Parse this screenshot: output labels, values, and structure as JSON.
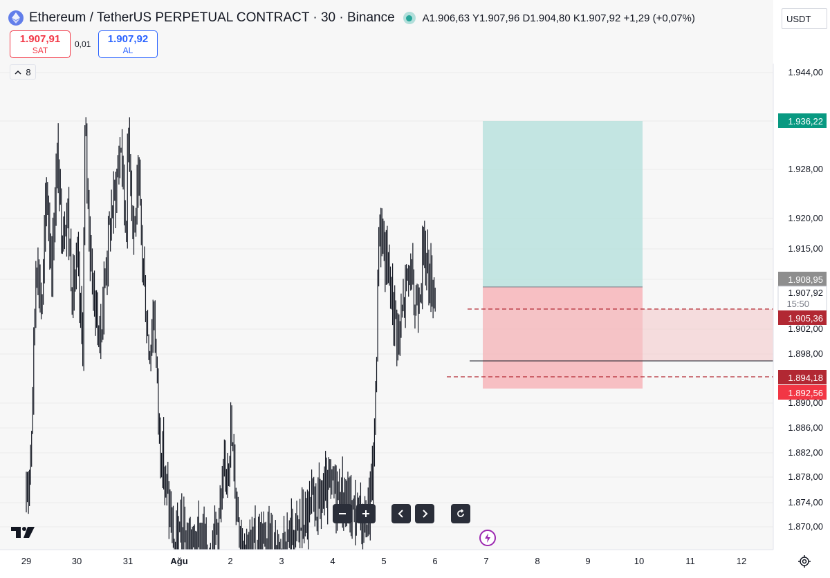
{
  "header": {
    "title": "Ethereum / TetherUS PERPETUAL CONTRACT · 30 · Binance",
    "ohlc": "A1.906,63  Y1.907,96  D1.904,80  K1.907,92  +1,29 (+0,07%)",
    "logo_icon": "ethereum-icon",
    "live_icon": "market-open-icon"
  },
  "currency": "USDT",
  "trade": {
    "sell_price": "1.907,91",
    "sell_label": "SAT",
    "spread": "0,01",
    "buy_price": "1.907,92",
    "buy_label": "AL"
  },
  "indicators_toggle": {
    "icon": "chevron-up-icon",
    "count": "8"
  },
  "colors": {
    "sell": "#f23645",
    "buy": "#2962ff",
    "profit_zone": "#b2dfdb",
    "loss_zone": "#f7a7ac",
    "target_label": "#089981",
    "stop_label": "#b22833",
    "entry_label": "#8e8e8e"
  },
  "navigation": {
    "zoom_out_icon": "minus-icon",
    "zoom_in_icon": "plus-icon",
    "scroll_left_icon": "chevron-left-icon",
    "scroll_right_icon": "chevron-right-icon",
    "reset_icon": "reset-icon",
    "bolt_icon": "lightning-icon",
    "settings_icon": "gear-icon"
  },
  "chart_data": {
    "type": "ohlc",
    "symbol": "ETHUSDT.P",
    "interval": "30",
    "y_axis_ticks": [
      "1.944,00",
      "1.928,00",
      "1.920,00",
      "1.915,00",
      "1.902,00",
      "1.898,00",
      "1.890,00",
      "1.886,00",
      "1.882,00",
      "1.878,00",
      "1.874,00",
      "1.870,00"
    ],
    "x_axis_ticks": [
      "29",
      "30",
      "31",
      "Ağu",
      "2",
      "3",
      "4",
      "5",
      "6",
      "7",
      "8",
      "9",
      "10",
      "11",
      "12"
    ],
    "price_labels": {
      "target": "1.936,22",
      "entry": "1.908,95",
      "current": "1.907,92",
      "countdown": "15:50",
      "red_line_1": "1.905,36",
      "stop_1": "1.894,18",
      "stop_2": "1.892,56"
    },
    "levels": {
      "target": 1936.22,
      "entry": 1908.95,
      "current": 1907.92,
      "horizontal_line": 1905.36,
      "black_line": 1897.1,
      "stop": 1894.18,
      "loss_bottom": 1892.56
    },
    "position_tool": {
      "type": "long",
      "entry": 1908.95,
      "take_profit": 1936.22,
      "stop_loss": 1892.56
    },
    "price_path": [
      [
        29,
        1872
      ],
      [
        29.1,
        1885
      ],
      [
        29.2,
        1915
      ],
      [
        29.3,
        1905
      ],
      [
        29.4,
        1925
      ],
      [
        29.5,
        1912
      ],
      [
        29.6,
        1930
      ],
      [
        29.7,
        1918
      ],
      [
        29.8,
        1922
      ],
      [
        29.9,
        1908
      ],
      [
        30.0,
        1912
      ],
      [
        30.1,
        1898
      ],
      [
        30.15,
        1935
      ],
      [
        30.25,
        1915
      ],
      [
        30.35,
        1905
      ],
      [
        30.45,
        1900
      ],
      [
        30.55,
        1912
      ],
      [
        30.65,
        1920
      ],
      [
        30.75,
        1925
      ],
      [
        30.85,
        1933
      ],
      [
        30.95,
        1918
      ],
      [
        31.0,
        1935
      ],
      [
        31.1,
        1918
      ],
      [
        31.2,
        1925
      ],
      [
        31.3,
        1910
      ],
      [
        31.4,
        1898
      ],
      [
        31.5,
        1905
      ],
      [
        31.6,
        1885
      ],
      [
        31.7,
        1878
      ],
      [
        31.8,
        1872
      ],
      [
        31.9,
        1866
      ],
      [
        32.0,
        1868
      ],
      [
        32.2,
        1866
      ],
      [
        32.4,
        1867
      ],
      [
        32.6,
        1866
      ],
      [
        32.8,
        1872
      ],
      [
        33.0,
        1885
      ],
      [
        33.1,
        1875
      ],
      [
        33.2,
        1868
      ],
      [
        33.4,
        1866
      ],
      [
        33.6,
        1867
      ],
      [
        33.8,
        1866
      ],
      [
        34.0,
        1866
      ],
      [
        34.2,
        1868
      ],
      [
        34.4,
        1870
      ],
      [
        34.6,
        1872
      ],
      [
        34.8,
        1874
      ],
      [
        35.0,
        1876
      ],
      [
        35.2,
        1874
      ],
      [
        35.4,
        1872
      ],
      [
        35.6,
        1870
      ],
      [
        35.7,
        1872
      ],
      [
        35.8,
        1880
      ],
      [
        35.85,
        1898
      ],
      [
        35.9,
        1920
      ],
      [
        36.0,
        1915
      ],
      [
        36.1,
        1910
      ],
      [
        36.2,
        1905
      ],
      [
        36.3,
        1900
      ],
      [
        36.4,
        1908
      ],
      [
        36.5,
        1912
      ],
      [
        36.6,
        1905
      ],
      [
        36.7,
        1910
      ],
      [
        36.8,
        1915
      ],
      [
        36.9,
        1910
      ],
      [
        37.0,
        1907.92
      ]
    ]
  }
}
